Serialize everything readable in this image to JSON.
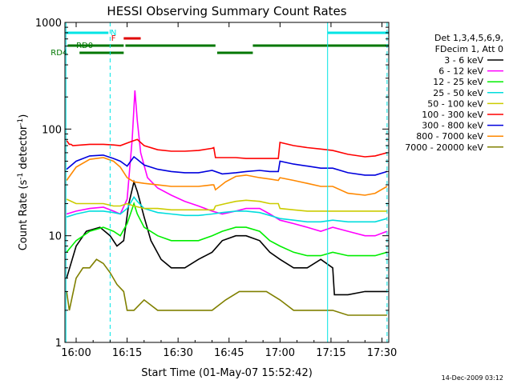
{
  "chart_data": {
    "type": "line",
    "title": "HESSI Observing Summary Count Rates",
    "xlabel": "Start Time (01-May-07 15:52:42)",
    "ylabel_prefix": "Count Rate (s",
    "ylabel_sup1": "-1",
    "ylabel_mid": " detector",
    "ylabel_sup2": "-1",
    "ylabel_suffix": ")",
    "y_scale": "log",
    "ylim": [
      1,
      1000
    ],
    "xlim_minutes": [
      -3.3,
      92.0
    ],
    "x_ticks": [
      {
        "m": 0,
        "label": "16:00"
      },
      {
        "m": 15,
        "label": "16:15"
      },
      {
        "m": 30,
        "label": "16:30"
      },
      {
        "m": 45,
        "label": "16:45"
      },
      {
        "m": 60,
        "label": "17:00"
      },
      {
        "m": 75,
        "label": "17:15"
      },
      {
        "m": 90,
        "label": "17:30"
      }
    ],
    "y_ticks": [
      {
        "v": 1,
        "label": "1"
      },
      {
        "v": 10,
        "label": "10"
      },
      {
        "v": 100,
        "label": "100"
      },
      {
        "v": 1000,
        "label": "1000"
      }
    ],
    "legend_header": [
      "Det 1,3,4,5,6,9,",
      "FDecim 1, Att 0"
    ],
    "series": [
      {
        "name": "3 - 6 keV",
        "color": "#000000",
        "points": [
          [
            -2.8,
            4
          ],
          [
            0,
            8
          ],
          [
            3,
            11
          ],
          [
            7,
            12
          ],
          [
            10,
            10
          ],
          [
            12,
            8
          ],
          [
            14,
            9
          ],
          [
            15.5,
            20
          ],
          [
            17,
            32
          ],
          [
            18,
            26
          ],
          [
            20,
            15
          ],
          [
            22,
            9
          ],
          [
            25,
            6
          ],
          [
            28,
            5
          ],
          [
            32,
            5
          ],
          [
            36,
            6
          ],
          [
            40,
            7
          ],
          [
            43,
            9
          ],
          [
            47,
            10
          ],
          [
            50,
            10
          ],
          [
            54,
            9
          ],
          [
            57,
            7
          ],
          [
            60,
            6
          ],
          [
            64,
            5
          ],
          [
            68,
            5
          ],
          [
            72,
            6
          ],
          [
            75.5,
            5
          ],
          [
            76,
            2.8
          ],
          [
            80,
            2.8
          ],
          [
            85,
            3
          ],
          [
            88,
            3
          ],
          [
            91.5,
            3
          ]
        ]
      },
      {
        "name": "6 - 12 keV",
        "color": "#ff00ff",
        "points": [
          [
            -2.8,
            16
          ],
          [
            0,
            17
          ],
          [
            4,
            18
          ],
          [
            8,
            18.5
          ],
          [
            11,
            17
          ],
          [
            13,
            16
          ],
          [
            15,
            22
          ],
          [
            16.5,
            80
          ],
          [
            17.3,
            230
          ],
          [
            18,
            120
          ],
          [
            19,
            60
          ],
          [
            21,
            35
          ],
          [
            24,
            28
          ],
          [
            28,
            24
          ],
          [
            32,
            21
          ],
          [
            36,
            19
          ],
          [
            40,
            17
          ],
          [
            43,
            16
          ],
          [
            47,
            17
          ],
          [
            50,
            18
          ],
          [
            54,
            18
          ],
          [
            57,
            16
          ],
          [
            60,
            14
          ],
          [
            64,
            13
          ],
          [
            68,
            12
          ],
          [
            72,
            11
          ],
          [
            75.5,
            12
          ],
          [
            80,
            11
          ],
          [
            85,
            10
          ],
          [
            88,
            10
          ],
          [
            91.5,
            11
          ]
        ]
      },
      {
        "name": "12 - 25 keV",
        "color": "#00ee00",
        "points": [
          [
            -2.8,
            7
          ],
          [
            0,
            9
          ],
          [
            4,
            11
          ],
          [
            8,
            12
          ],
          [
            11,
            11
          ],
          [
            13,
            10
          ],
          [
            15,
            13
          ],
          [
            17,
            20
          ],
          [
            18,
            16
          ],
          [
            20,
            12
          ],
          [
            24,
            10
          ],
          [
            28,
            9
          ],
          [
            32,
            9
          ],
          [
            36,
            9
          ],
          [
            40,
            10
          ],
          [
            43,
            11
          ],
          [
            47,
            12
          ],
          [
            50,
            12
          ],
          [
            54,
            11
          ],
          [
            57,
            9
          ],
          [
            60,
            8
          ],
          [
            64,
            7
          ],
          [
            68,
            6.5
          ],
          [
            72,
            6.5
          ],
          [
            75.5,
            7
          ],
          [
            80,
            6.5
          ],
          [
            85,
            6.5
          ],
          [
            88,
            6.5
          ],
          [
            91.5,
            7
          ]
        ]
      },
      {
        "name": "25 - 50 keV",
        "color": "#00dddd",
        "points": [
          [
            -2.8,
            15
          ],
          [
            0,
            16
          ],
          [
            4,
            17
          ],
          [
            8,
            17
          ],
          [
            11,
            16.5
          ],
          [
            13,
            16
          ],
          [
            15,
            18
          ],
          [
            17,
            23
          ],
          [
            18,
            21
          ],
          [
            20,
            18
          ],
          [
            24,
            16.5
          ],
          [
            28,
            16
          ],
          [
            32,
            15.5
          ],
          [
            36,
            15.5
          ],
          [
            40,
            16
          ],
          [
            43,
            16.5
          ],
          [
            47,
            17
          ],
          [
            50,
            17
          ],
          [
            54,
            16.5
          ],
          [
            57,
            15.5
          ],
          [
            60,
            14.5
          ],
          [
            64,
            14
          ],
          [
            68,
            13.5
          ],
          [
            72,
            13.5
          ],
          [
            75.5,
            14
          ],
          [
            80,
            13.5
          ],
          [
            85,
            13.5
          ],
          [
            88,
            13.5
          ],
          [
            91.5,
            14.5
          ]
        ]
      },
      {
        "name": "50 - 100 keV",
        "color": "#cccc00",
        "points": [
          [
            -2.8,
            22
          ],
          [
            0,
            20
          ],
          [
            4,
            20
          ],
          [
            8,
            20
          ],
          [
            11,
            19
          ],
          [
            13,
            19
          ],
          [
            15,
            20
          ],
          [
            17,
            19
          ],
          [
            20,
            18
          ],
          [
            24,
            18
          ],
          [
            28,
            17.5
          ],
          [
            32,
            17.5
          ],
          [
            36,
            17.5
          ],
          [
            40.5,
            17.5
          ],
          [
            41,
            19
          ],
          [
            44,
            20
          ],
          [
            47,
            21
          ],
          [
            50,
            21.5
          ],
          [
            54,
            21
          ],
          [
            57,
            20
          ],
          [
            59.5,
            20
          ],
          [
            60,
            18
          ],
          [
            64,
            17.5
          ],
          [
            68,
            17
          ],
          [
            72,
            17
          ],
          [
            75.5,
            17
          ],
          [
            80,
            17
          ],
          [
            85,
            17
          ],
          [
            88,
            17
          ],
          [
            91.5,
            17
          ]
        ]
      },
      {
        "name": "100 - 300 keV",
        "color": "#ff0000",
        "points": [
          [
            -2.8,
            78
          ],
          [
            -2,
            72
          ],
          [
            -1.5,
            72
          ],
          [
            -1,
            70
          ],
          [
            4,
            72
          ],
          [
            8,
            72
          ],
          [
            11,
            71
          ],
          [
            13,
            70
          ],
          [
            16,
            76
          ],
          [
            18,
            80
          ],
          [
            20,
            70
          ],
          [
            24,
            64
          ],
          [
            28,
            62
          ],
          [
            32,
            62
          ],
          [
            36,
            63
          ],
          [
            40,
            66
          ],
          [
            40.5,
            67
          ],
          [
            41,
            54
          ],
          [
            44,
            54
          ],
          [
            47,
            54
          ],
          [
            50,
            53
          ],
          [
            54,
            53
          ],
          [
            57,
            53
          ],
          [
            59.5,
            53
          ],
          [
            60,
            75
          ],
          [
            64,
            70
          ],
          [
            68,
            67
          ],
          [
            72,
            65
          ],
          [
            75.5,
            63
          ],
          [
            80,
            58
          ],
          [
            85,
            55
          ],
          [
            88,
            56
          ],
          [
            91.5,
            60
          ]
        ]
      },
      {
        "name": "300 - 800 keV",
        "color": "#0000dd",
        "points": [
          [
            -2.8,
            42
          ],
          [
            0,
            50
          ],
          [
            4,
            56
          ],
          [
            8,
            57
          ],
          [
            11,
            53
          ],
          [
            13,
            50
          ],
          [
            15,
            45
          ],
          [
            17,
            55
          ],
          [
            18,
            52
          ],
          [
            20,
            46
          ],
          [
            24,
            42
          ],
          [
            28,
            40
          ],
          [
            32,
            39
          ],
          [
            36,
            39
          ],
          [
            40,
            41
          ],
          [
            43,
            38
          ],
          [
            47,
            39
          ],
          [
            50,
            40
          ],
          [
            54,
            41
          ],
          [
            57,
            40
          ],
          [
            59.5,
            40
          ],
          [
            60,
            50
          ],
          [
            64,
            47
          ],
          [
            68,
            45
          ],
          [
            72,
            43
          ],
          [
            75.5,
            43
          ],
          [
            80,
            39
          ],
          [
            85,
            37
          ],
          [
            88,
            37
          ],
          [
            91.5,
            40
          ]
        ]
      },
      {
        "name": "800 - 7000 keV",
        "color": "#ff8800",
        "points": [
          [
            -2.8,
            33
          ],
          [
            0,
            44
          ],
          [
            4,
            52
          ],
          [
            8,
            54
          ],
          [
            11,
            50
          ],
          [
            13,
            44
          ],
          [
            15,
            35
          ],
          [
            17,
            32
          ],
          [
            20,
            31
          ],
          [
            24,
            30
          ],
          [
            28,
            29
          ],
          [
            32,
            29
          ],
          [
            36,
            29
          ],
          [
            40,
            30
          ],
          [
            40.5,
            30
          ],
          [
            41,
            27
          ],
          [
            44,
            32
          ],
          [
            47,
            36
          ],
          [
            50,
            37
          ],
          [
            54,
            35
          ],
          [
            57,
            34
          ],
          [
            59.5,
            33
          ],
          [
            60,
            35
          ],
          [
            64,
            33
          ],
          [
            68,
            31
          ],
          [
            72,
            29
          ],
          [
            75.5,
            29
          ],
          [
            80,
            25
          ],
          [
            85,
            24
          ],
          [
            88,
            25
          ],
          [
            91.5,
            29
          ]
        ]
      },
      {
        "name": "7000 - 20000 keV",
        "color": "#808000",
        "points": [
          [
            -2.8,
            3
          ],
          [
            -2,
            2
          ],
          [
            0,
            4
          ],
          [
            2,
            5
          ],
          [
            4,
            5
          ],
          [
            6,
            6
          ],
          [
            8,
            5.5
          ],
          [
            10,
            4.5
          ],
          [
            12,
            3.5
          ],
          [
            14,
            3
          ],
          [
            15,
            2
          ],
          [
            17,
            2
          ],
          [
            20,
            2.5
          ],
          [
            24,
            2
          ],
          [
            28,
            2
          ],
          [
            32,
            2
          ],
          [
            36,
            2
          ],
          [
            40,
            2
          ],
          [
            44,
            2.5
          ],
          [
            48,
            3
          ],
          [
            52,
            3
          ],
          [
            56,
            3
          ],
          [
            60,
            2.5
          ],
          [
            64,
            2
          ],
          [
            68,
            2
          ],
          [
            72,
            2
          ],
          [
            75.5,
            2
          ],
          [
            80,
            1.8
          ],
          [
            85,
            1.8
          ],
          [
            88,
            1.8
          ],
          [
            91.5,
            1.8
          ]
        ]
      }
    ],
    "vertical_lines": [
      {
        "m": -3.0,
        "style": "solid"
      },
      {
        "m": 10.0,
        "style": "dashed"
      },
      {
        "m": 74.0,
        "style": "solid"
      },
      {
        "m": 91.5,
        "style": "dashed"
      }
    ],
    "flag_bars": [
      {
        "label": "N",
        "color": "#00e5e5",
        "y": 1200,
        "segments": [
          [
            -3.0,
            9.5
          ],
          [
            74.0,
            92.0
          ]
        ],
        "label_m": 11.0
      },
      {
        "label": "F",
        "color": "#e00000",
        "y": 1100,
        "segments": [
          [
            14.0,
            19.0
          ]
        ],
        "label_m": 11.0
      },
      {
        "label": "RD0",
        "color": "#007700",
        "y": 1000,
        "segments": [
          [
            -2.5,
            14.0
          ],
          [
            14.5,
            41.0
          ],
          [
            52.0,
            92.0
          ]
        ],
        "label_m": 2.5
      },
      {
        "label": "RD4",
        "color": "#007700",
        "y": 920,
        "segments": [
          [
            1.0,
            14.0
          ],
          [
            41.5,
            52.0
          ]
        ],
        "label_m": -5.0
      }
    ]
  },
  "footer": {
    "timestamp": "14-Dec-2009 03:12"
  }
}
